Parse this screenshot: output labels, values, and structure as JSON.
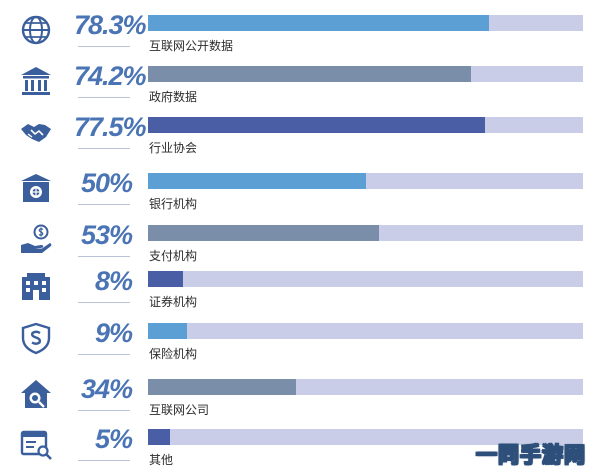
{
  "chart_data": {
    "type": "bar",
    "orientation": "horizontal",
    "categories": [
      "互联网公开数据",
      "政府数据",
      "行业协会",
      "银行机构",
      "支付机构",
      "证券机构",
      "保险机构",
      "互联网公司",
      "其他"
    ],
    "values": [
      78.3,
      74.2,
      77.5,
      50,
      53,
      8,
      9,
      34,
      5
    ],
    "value_labels": [
      "78.3%",
      "74.2%",
      "77.5%",
      "50%",
      "53%",
      "8%",
      "9%",
      "34%",
      "5%"
    ],
    "xlim": [
      0,
      100
    ],
    "icons": [
      "globe-icon",
      "bank-building-icon",
      "handshake-icon",
      "bank-safe-icon",
      "money-hand-icon",
      "office-building-icon",
      "shield-icon",
      "house-search-icon",
      "document-search-icon"
    ],
    "bar_colors": [
      "#5b9fd4",
      "#7a8ea9",
      "#4a5ea6",
      "#5b9fd4",
      "#7a8ea9",
      "#4a5ea6",
      "#5b9fd4",
      "#7a8ea9",
      "#4a5ea6"
    ],
    "track_color": "#c9cde7",
    "percent_color": "#4a74b4",
    "icon_color": "#3b5f9c"
  },
  "watermark": "一同手游网"
}
